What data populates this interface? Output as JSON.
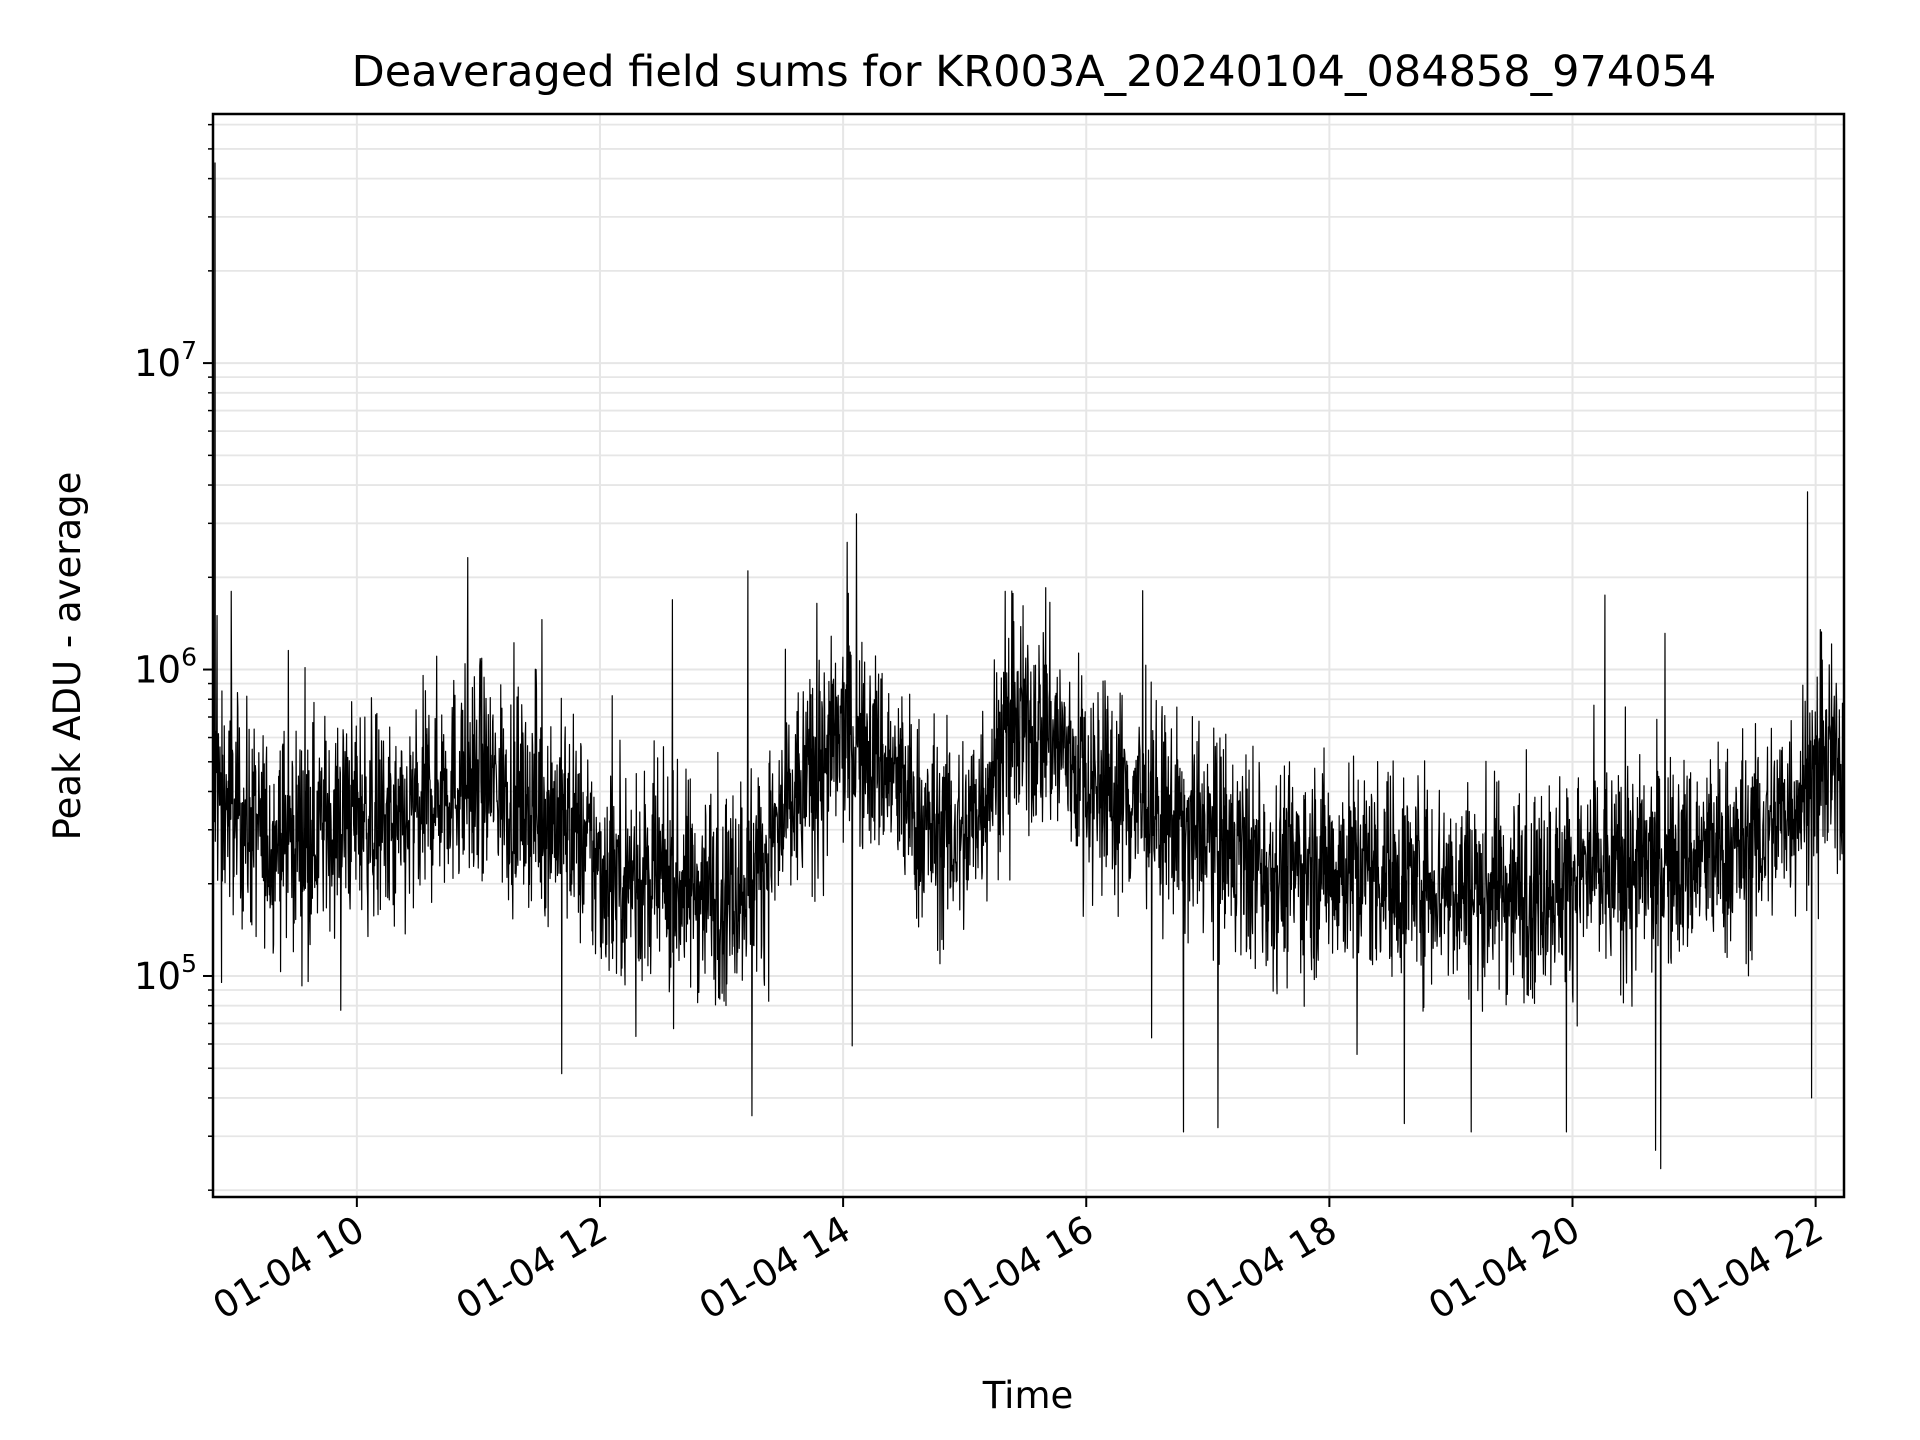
{
  "chart_data": {
    "type": "line",
    "title": "Deaveraged field sums for KR003A_20240104_084858_974054",
    "xlabel": "Time",
    "ylabel": "Peak ADU - average",
    "x_range": [
      "01-04 08:49",
      "01-04 22:14"
    ],
    "x_ticks": [
      {
        "time": "01-04 10:00",
        "label": "01-04 10"
      },
      {
        "time": "01-04 12:00",
        "label": "01-04 12"
      },
      {
        "time": "01-04 14:00",
        "label": "01-04 14"
      },
      {
        "time": "01-04 16:00",
        "label": "01-04 16"
      },
      {
        "time": "01-04 18:00",
        "label": "01-04 18"
      },
      {
        "time": "01-04 20:00",
        "label": "01-04 20"
      },
      {
        "time": "01-04 22:00",
        "label": "01-04 22"
      }
    ],
    "y_scale": "log",
    "y_range": [
      19000,
      65000000
    ],
    "y_ticks": [
      {
        "value": 100000,
        "base": "10",
        "exp": "5"
      },
      {
        "value": 1000000,
        "base": "10",
        "exp": "6"
      },
      {
        "value": 10000000,
        "base": "10",
        "exp": "7"
      }
    ],
    "grid": true,
    "line_color": "#000000",
    "grid_color": "#e6e6e6",
    "series": [
      {
        "name": "",
        "baseline": [
          [
            "01-04 08:49",
            400000
          ],
          [
            "01-04 09:15",
            280000
          ],
          [
            "01-04 09:40",
            300000
          ],
          [
            "01-04 10:00",
            350000
          ],
          [
            "01-04 10:20",
            280000
          ],
          [
            "01-04 10:40",
            420000
          ],
          [
            "01-04 11:00",
            450000
          ],
          [
            "01-04 11:20",
            380000
          ],
          [
            "01-04 11:45",
            320000
          ],
          [
            "01-04 12:00",
            220000
          ],
          [
            "01-04 12:30",
            200000
          ],
          [
            "01-04 13:00",
            190000
          ],
          [
            "01-04 13:20",
            230000
          ],
          [
            "01-04 13:40",
            420000
          ],
          [
            "01-04 14:00",
            600000
          ],
          [
            "01-04 14:20",
            500000
          ],
          [
            "01-04 14:40",
            300000
          ],
          [
            "01-04 15:00",
            280000
          ],
          [
            "01-04 15:20",
            600000
          ],
          [
            "01-04 15:40",
            650000
          ],
          [
            "01-04 16:00",
            450000
          ],
          [
            "01-04 16:30",
            350000
          ],
          [
            "01-04 17:00",
            280000
          ],
          [
            "01-04 17:30",
            220000
          ],
          [
            "01-04 18:00",
            230000
          ],
          [
            "01-04 18:30",
            220000
          ],
          [
            "01-04 19:00",
            200000
          ],
          [
            "01-04 19:30",
            190000
          ],
          [
            "01-04 20:00",
            210000
          ],
          [
            "01-04 20:30",
            220000
          ],
          [
            "01-04 21:00",
            240000
          ],
          [
            "01-04 21:30",
            270000
          ],
          [
            "01-04 22:00",
            450000
          ],
          [
            "01-04 22:14",
            480000
          ]
        ],
        "spikes": [
          [
            "01-04 08:50",
            45000000
          ],
          [
            "01-04 08:51",
            1500000
          ],
          [
            "01-04 08:58",
            1800000
          ],
          [
            "01-04 13:13",
            2100000
          ],
          [
            "01-04 13:15",
            35000
          ],
          [
            "01-04 14:02",
            2600000
          ],
          [
            "01-04 15:20",
            1800000
          ],
          [
            "01-04 15:40",
            1850000
          ],
          [
            "01-04 16:48",
            31000
          ],
          [
            "01-04 17:05",
            32000
          ],
          [
            "01-04 18:37",
            33000
          ],
          [
            "01-04 19:10",
            31000
          ],
          [
            "01-04 19:57",
            31000
          ],
          [
            "01-04 20:16",
            1750000
          ],
          [
            "01-04 20:41",
            27000
          ],
          [
            "01-04 21:56",
            3800000
          ],
          [
            "01-04 21:58",
            40000
          ]
        ]
      }
    ]
  }
}
